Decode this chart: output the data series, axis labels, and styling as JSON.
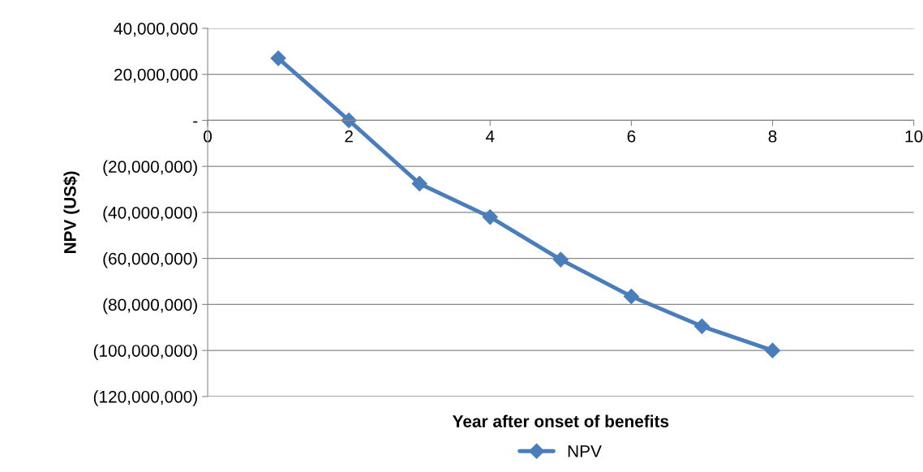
{
  "chart_data": {
    "type": "line",
    "ylabel": "NPV (US$)",
    "xlabel": "Year after onset of benefits",
    "x": [
      1,
      2,
      3,
      4,
      5,
      6,
      7,
      8
    ],
    "series": [
      {
        "name": "NPV",
        "color": "#4a7ebb",
        "values": [
          27000000,
          0,
          -27500000,
          -42000000,
          -60500000,
          -76500000,
          -89500000,
          -100000000
        ]
      }
    ],
    "xlim": [
      0,
      10
    ],
    "xticks": [
      0,
      2,
      4,
      6,
      8,
      10
    ],
    "ylim": [
      -120000000,
      40000000
    ],
    "yticks": [
      {
        "value": 40000000,
        "label": "40,000,000"
      },
      {
        "value": 20000000,
        "label": "20,000,000"
      },
      {
        "value": 0,
        "label": "-"
      },
      {
        "value": -20000000,
        "label": "(20,000,000)"
      },
      {
        "value": -40000000,
        "label": "(40,000,000)"
      },
      {
        "value": -60000000,
        "label": "(60,000,000)"
      },
      {
        "value": -80000000,
        "label": "(80,000,000)"
      },
      {
        "value": -100000000,
        "label": "(100,000,000)"
      },
      {
        "value": -120000000,
        "label": "(120,000,000)"
      }
    ],
    "grid": "y",
    "legend": "bottom",
    "marker": "diamond",
    "line_style": "solid"
  }
}
